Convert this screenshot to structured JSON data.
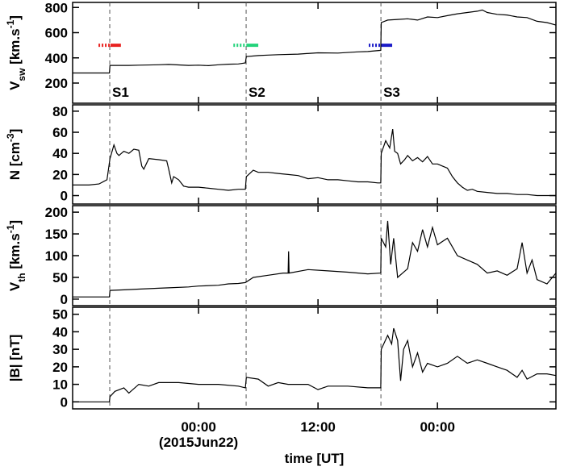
{
  "chart_data": [
    {
      "type": "line",
      "ylabel": [
        {
          "text": "V"
        },
        {
          "text": "sw",
          "shift": "sub"
        },
        {
          "text": " [km.s"
        },
        {
          "text": "-1",
          "shift": "super"
        },
        {
          "text": "]"
        }
      ],
      "xlim": [
        -12.65,
        35.9
      ],
      "ylim": [
        40,
        840
      ],
      "yticks": [
        200,
        400,
        600,
        800
      ],
      "color": "#000000",
      "shocks": [
        {
          "x": -8.92,
          "label": "S1"
        },
        {
          "x": 4.78,
          "label": "S2"
        },
        {
          "x": 18.32,
          "label": "S3"
        }
      ],
      "intervals": [
        {
          "color": "#e8211f",
          "x": [
            -10.05,
            -8.85,
            -7.8
          ],
          "y": 500
        },
        {
          "color": "#22d37a",
          "x": [
            3.5,
            4.85,
            6.0
          ],
          "y": 500
        },
        {
          "color": "#1b1bc8",
          "x": [
            17.1,
            18.35,
            19.45
          ],
          "y": 500
        }
      ],
      "x": [
        -12.65,
        -10,
        -8.95,
        -8.9,
        -7,
        -6,
        -4,
        -3,
        -1,
        0,
        1,
        2,
        3,
        4,
        4.7,
        4.8,
        6,
        7,
        8,
        10,
        12,
        14,
        16,
        17,
        18.3,
        18.35,
        19,
        20,
        21,
        22,
        23,
        24,
        25,
        26,
        27,
        28,
        28.5,
        29,
        30,
        31,
        32,
        33,
        34,
        35,
        35.9
      ],
      "values": [
        280,
        280,
        280,
        340,
        340,
        342,
        345,
        348,
        340,
        342,
        338,
        345,
        350,
        352,
        360,
        410,
        418,
        422,
        425,
        430,
        440,
        438,
        448,
        450,
        460,
        680,
        700,
        705,
        710,
        700,
        725,
        720,
        735,
        750,
        760,
        770,
        780,
        760,
        745,
        740,
        725,
        720,
        690,
        680,
        660
      ]
    },
    {
      "type": "line",
      "ylabel": [
        {
          "text": "N [cm"
        },
        {
          "text": "-3",
          "shift": "super"
        },
        {
          "text": "]"
        }
      ],
      "xlim": [
        -12.65,
        35.9
      ],
      "ylim": [
        -8,
        86
      ],
      "yticks": [
        0,
        20,
        40,
        60,
        80
      ],
      "color": "#000000",
      "x": [
        -12.65,
        -11,
        -10,
        -9.2,
        -8.9,
        -8.5,
        -8.2,
        -8,
        -7.5,
        -7,
        -6.5,
        -6,
        -5.7,
        -5.5,
        -5,
        -4,
        -3.2,
        -3,
        -2.7,
        -2.5,
        -2,
        -1.5,
        -1,
        0,
        1,
        2,
        3,
        4,
        4.7,
        4.8,
        5.5,
        6,
        7,
        8,
        9,
        10,
        11,
        12,
        13,
        14,
        15,
        16,
        17,
        18,
        18.3,
        18.35,
        18.8,
        19.2,
        19.5,
        19.7,
        20,
        20.3,
        20.7,
        21,
        21.5,
        22,
        22.5,
        23,
        23.5,
        24,
        24.5,
        25,
        25.5,
        26,
        26.5,
        27,
        27.5,
        28,
        29,
        30,
        31,
        32,
        33,
        34,
        35,
        35.9
      ],
      "values": [
        10,
        10,
        11,
        15,
        35,
        48,
        40,
        38,
        42,
        40,
        44,
        43,
        28,
        25,
        35,
        34,
        33,
        25,
        12,
        18,
        15,
        9,
        8,
        8,
        7,
        6,
        5,
        6,
        6,
        18,
        24,
        22,
        22,
        21,
        20,
        19,
        16,
        17,
        15,
        15,
        14,
        13,
        13,
        12,
        12,
        40,
        52,
        45,
        63,
        42,
        40,
        30,
        34,
        38,
        33,
        36,
        32,
        37,
        30,
        30,
        28,
        26,
        18,
        12,
        8,
        5,
        6,
        4,
        3,
        2,
        2,
        1,
        1,
        0,
        0,
        0
      ]
    },
    {
      "type": "line",
      "ylabel": [
        {
          "text": "V"
        },
        {
          "text": "th",
          "shift": "sub"
        },
        {
          "text": " [km.s"
        },
        {
          "text": "-1",
          "shift": "super"
        },
        {
          "text": "]"
        }
      ],
      "xlim": [
        -12.65,
        35.9
      ],
      "ylim": [
        -15,
        215
      ],
      "yticks": [
        0,
        50,
        100,
        150,
        200
      ],
      "color": "#000000",
      "x": [
        -12.65,
        -10,
        -8.95,
        -8.9,
        -7,
        -6,
        -4,
        -3,
        -1,
        0,
        2,
        3,
        4,
        4.7,
        5.5,
        7,
        8.5,
        9,
        9.05,
        9.1,
        11,
        13,
        15,
        17,
        18.3,
        18.35,
        18.8,
        19,
        19.3,
        19.6,
        20,
        20.5,
        21,
        21.5,
        22,
        22.5,
        23,
        23.5,
        24,
        25,
        25.5,
        26,
        27,
        28,
        29,
        30,
        31,
        32,
        32.5,
        33,
        33.5,
        34,
        35,
        35.9
      ],
      "values": [
        5,
        5,
        5,
        20,
        22,
        23,
        25,
        26,
        28,
        30,
        32,
        35,
        36,
        38,
        50,
        55,
        60,
        60,
        110,
        60,
        68,
        65,
        62,
        58,
        60,
        140,
        120,
        180,
        80,
        140,
        50,
        60,
        70,
        130,
        110,
        160,
        120,
        165,
        125,
        140,
        120,
        100,
        90,
        80,
        60,
        65,
        55,
        70,
        130,
        60,
        90,
        45,
        35,
        60
      ]
    },
    {
      "type": "line",
      "ylabel": [
        {
          "text": "|B| [nT]"
        }
      ],
      "xlim": [
        -12.65,
        35.9
      ],
      "ylim": [
        -4,
        54
      ],
      "yticks": [
        0,
        10,
        20,
        30,
        40,
        50
      ],
      "color": "#000000",
      "xticks": [
        {
          "value": 0,
          "label": "00:00"
        },
        {
          "value": 12,
          "label": "12:00"
        },
        {
          "value": 24,
          "label": "00:00"
        }
      ],
      "xdate": "(2015Jun22)",
      "xlabel": "time [UT]",
      "x": [
        -12.65,
        -10,
        -8.95,
        -8.9,
        -8.4,
        -7.5,
        -7,
        -6,
        -5,
        -4,
        -2,
        0,
        2,
        4,
        4.7,
        4.8,
        6,
        7,
        8,
        9,
        11,
        12,
        13,
        15,
        17,
        18.3,
        18.35,
        19,
        19.4,
        19.6,
        20,
        20.3,
        20.6,
        21,
        21.5,
        22,
        22.5,
        23,
        24,
        25,
        26,
        27,
        28,
        29,
        30,
        31,
        32,
        32.5,
        33,
        34,
        35,
        35.9
      ],
      "values": [
        0,
        0,
        0,
        3,
        6,
        8,
        5,
        10,
        9,
        11,
        11,
        10,
        10,
        9,
        8,
        14,
        13,
        9,
        11,
        10,
        10,
        7,
        9,
        9,
        8,
        8,
        30,
        38,
        33,
        42,
        35,
        12,
        30,
        35,
        20,
        28,
        17,
        22,
        20,
        22,
        26,
        22,
        24,
        22,
        20,
        18,
        14,
        18,
        13,
        16,
        16,
        15
      ]
    }
  ]
}
